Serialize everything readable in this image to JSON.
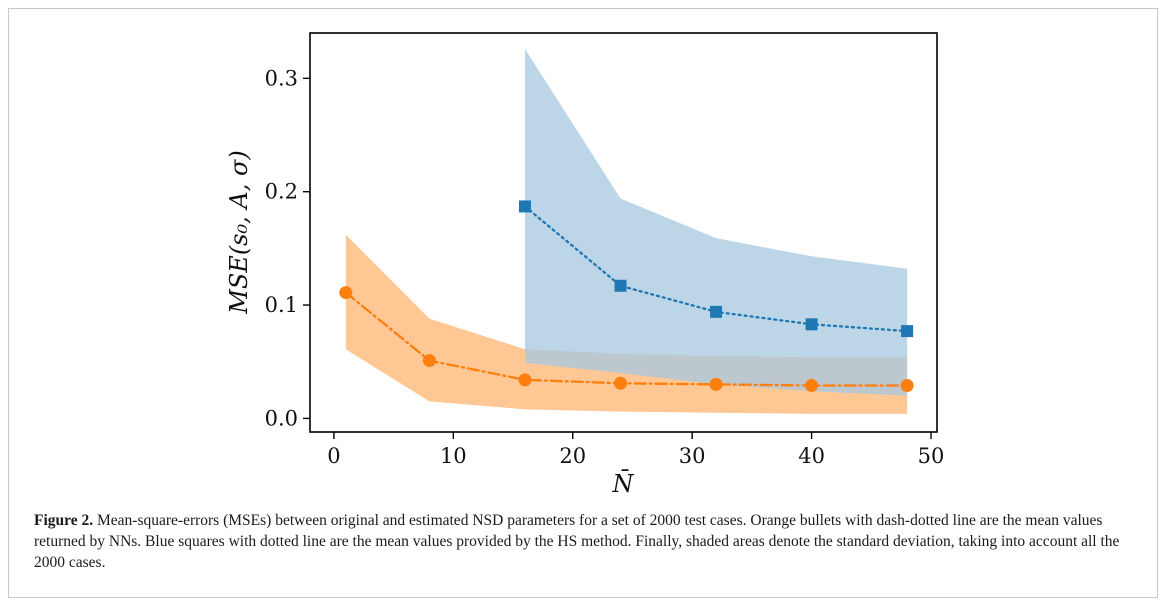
{
  "chart_data": {
    "type": "line",
    "xlabel": "N̄",
    "ylabel": "MSE(s₀, A, σ)",
    "xlim": [
      -2,
      50.5
    ],
    "ylim": [
      -0.012,
      0.34
    ],
    "xticks": [
      0,
      10,
      20,
      30,
      40,
      50
    ],
    "yticks": [
      0.0,
      0.1,
      0.2,
      0.3
    ],
    "xtick_labels": [
      "0",
      "10",
      "20",
      "30",
      "40",
      "50"
    ],
    "ytick_labels": [
      "0.0",
      "0.1",
      "0.2",
      "0.3"
    ],
    "grid": false,
    "series": [
      {
        "key": "nn",
        "marker": "circle",
        "line_style": "dash-dot",
        "color": "#ff7f0e",
        "band_color": "#ffc794",
        "x": [
          1,
          8,
          16,
          24,
          32,
          40,
          48
        ],
        "y": [
          0.111,
          0.051,
          0.034,
          0.031,
          0.03,
          0.029,
          0.029
        ],
        "upper": [
          0.162,
          0.088,
          0.061,
          0.057,
          0.055,
          0.054,
          0.054
        ],
        "lower": [
          0.061,
          0.015,
          0.008,
          0.006,
          0.005,
          0.004,
          0.004
        ]
      },
      {
        "key": "hs",
        "marker": "square",
        "line_style": "dotted",
        "color": "#1f77b4",
        "band_color": "#a6c8e0",
        "x": [
          16,
          24,
          32,
          40,
          48
        ],
        "y": [
          0.187,
          0.117,
          0.094,
          0.083,
          0.077
        ],
        "upper": [
          0.326,
          0.194,
          0.159,
          0.143,
          0.132
        ],
        "lower": [
          0.049,
          0.04,
          0.03,
          0.024,
          0.02
        ]
      }
    ]
  },
  "caption": {
    "figure_label": "Figure 2.",
    "text": " Mean-square-errors (MSEs) between original and estimated NSD parameters for a set of 2000 test cases. Orange bullets with dash-dotted line are the mean values returned by NNs. Blue squares with dotted line are the mean values provided by the HS method. Finally, shaded areas denote the standard deviation, taking into account all the 2000 cases."
  }
}
